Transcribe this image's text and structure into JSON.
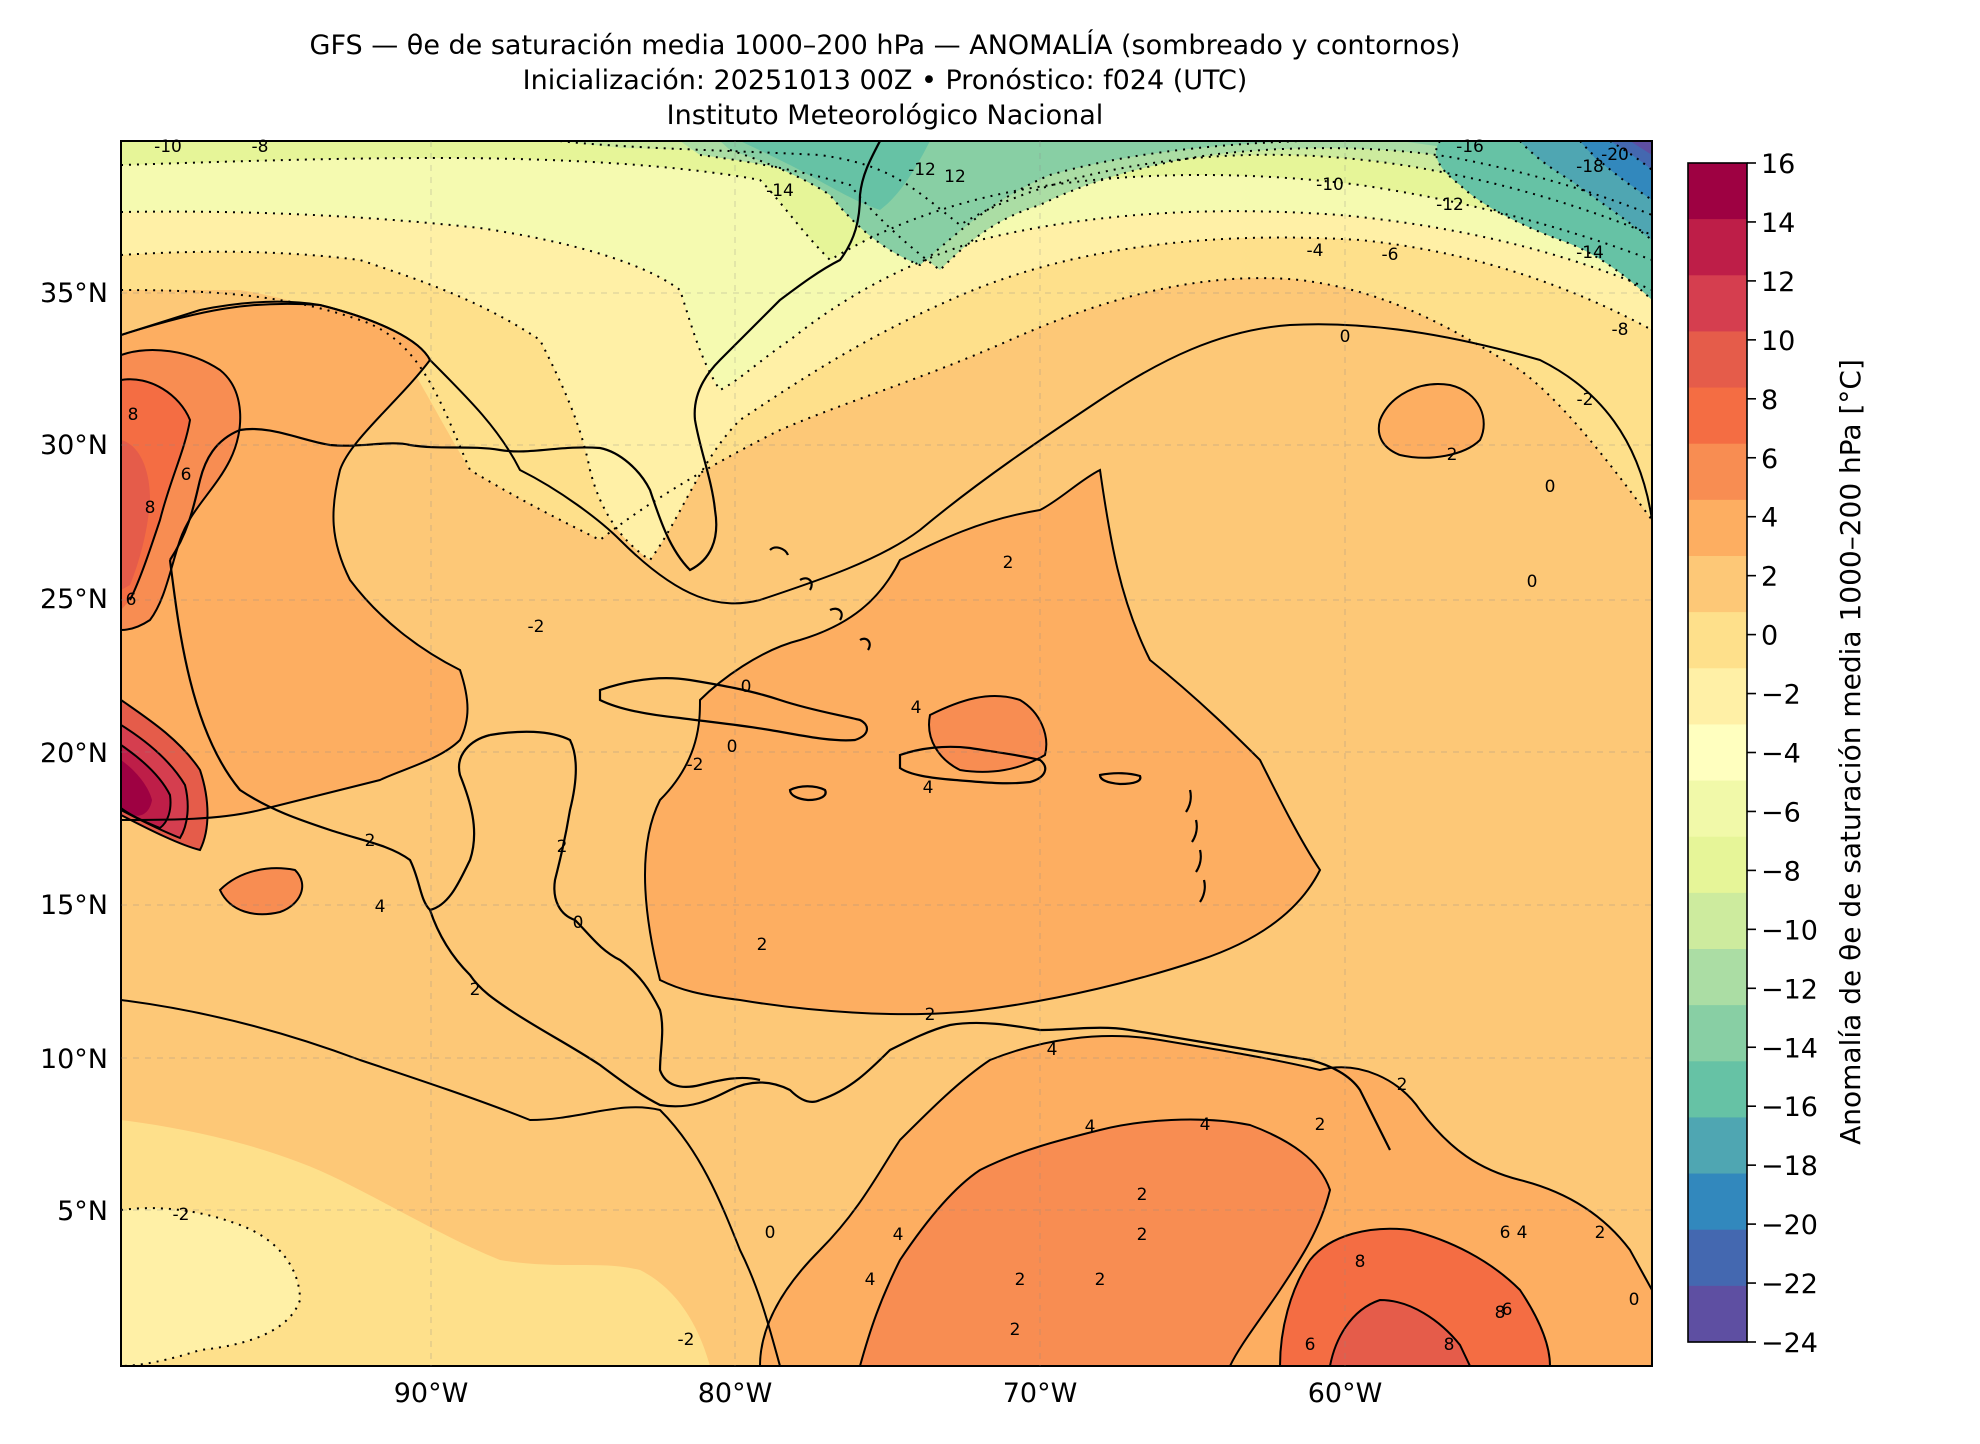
{
  "header": {
    "title_line1": "GFS — θe de saturación media 1000–200 hPa — ANOMALÍA (sombreado y contornos)",
    "title_line2": "Inicialización: 20251013 00Z   •   Pronóstico: f024 (UTC)",
    "title_line3": "Instituto Meteorológico Nacional"
  },
  "map": {
    "lon_ticks": [
      "90°W",
      "80°W",
      "70°W",
      "60°W"
    ],
    "lat_ticks": [
      "35°N",
      "30°N",
      "25°N",
      "20°N",
      "15°N",
      "10°N",
      "5°N"
    ],
    "contour_labels": [
      "-10",
      "-8",
      "-14",
      "-12",
      "12",
      "-16",
      "-18",
      "-20",
      "-10",
      "-4",
      "-6",
      "-12",
      "-14",
      "-8",
      "-2",
      "0",
      "2",
      "0",
      "0",
      "2",
      "8",
      "6",
      "8",
      "6",
      "-2",
      "4",
      "0",
      "0",
      "4",
      "2",
      "2",
      "4",
      "0",
      "2",
      "-2",
      "2",
      "2",
      "4",
      "2",
      "4",
      "4",
      "2",
      "2",
      "2",
      "0",
      "4",
      "4",
      "2",
      "2",
      "2",
      "4",
      "6",
      "6",
      "8",
      "8",
      "6",
      "8",
      "-2",
      "2",
      "-2",
      "0"
    ]
  },
  "colorbar": {
    "label": "Anomalía de θe de saturación media 1000–200 hPa [°C]",
    "ticks": [
      "16",
      "14",
      "12",
      "10",
      "8",
      "6",
      "4",
      "2",
      "0",
      "−2",
      "−4",
      "−6",
      "−8",
      "−10",
      "−12",
      "−14",
      "−16",
      "−18",
      "−20",
      "−22",
      "−24"
    ],
    "colors": [
      "#9e0142",
      "#be1e48",
      "#d53e4f",
      "#e55c4a",
      "#f46d43",
      "#f88d52",
      "#fdae61",
      "#fdc877",
      "#fee08b",
      "#fff0a6",
      "#ffffbf",
      "#f1f9a9",
      "#e6f598",
      "#cdeb9e",
      "#abdda4",
      "#88cfa4",
      "#66c2a5",
      "#4fa6b2",
      "#3288bd",
      "#4468b0",
      "#5e4fa2"
    ]
  }
}
